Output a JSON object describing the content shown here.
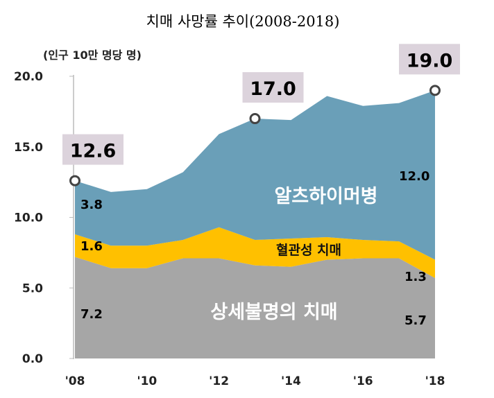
{
  "chart_data": {
    "type": "area",
    "stacked": true,
    "title": "치매 사망률 추이(2008-2018)",
    "ylabel": "(인구 10만 명당 명)",
    "ylim": [
      0,
      20
    ],
    "yticks": [
      "0.0",
      "5.0",
      "10.0",
      "15.0",
      "20.0"
    ],
    "x": [
      2008,
      2009,
      2010,
      2011,
      2012,
      2013,
      2014,
      2015,
      2016,
      2017,
      2018
    ],
    "xtick_labels": [
      "'08",
      "'10",
      "'12",
      "'14",
      "'16",
      "'18"
    ],
    "grid": false,
    "series": [
      {
        "name": "상세불명의 치매",
        "color": "#a6a6a6",
        "values": [
          7.2,
          6.4,
          6.4,
          7.1,
          7.1,
          6.6,
          6.5,
          7.0,
          7.1,
          7.1,
          5.7
        ]
      },
      {
        "name": "혈관성 치매",
        "color": "#ffc000",
        "values": [
          1.6,
          1.6,
          1.6,
          1.3,
          2.2,
          1.8,
          2.0,
          1.6,
          1.3,
          1.2,
          1.3
        ]
      },
      {
        "name": "알츠하이머병",
        "color": "#6a9fb8",
        "values": [
          3.8,
          3.8,
          4.0,
          4.8,
          6.6,
          8.6,
          8.4,
          10.0,
          9.5,
          9.8,
          12.0
        ]
      }
    ],
    "totals_callouts": [
      {
        "year": 2008,
        "label": "12.6"
      },
      {
        "year": 2013,
        "label": "17.0"
      },
      {
        "year": 2018,
        "label": "19.0"
      }
    ],
    "data_labels": {
      "unspecified_2008": "7.2",
      "vascular_2008": "1.6",
      "alzheimer_2008": "3.8",
      "unspecified_2018": "5.7",
      "vascular_2018": "1.3",
      "alzheimer_2018": "12.0"
    }
  }
}
